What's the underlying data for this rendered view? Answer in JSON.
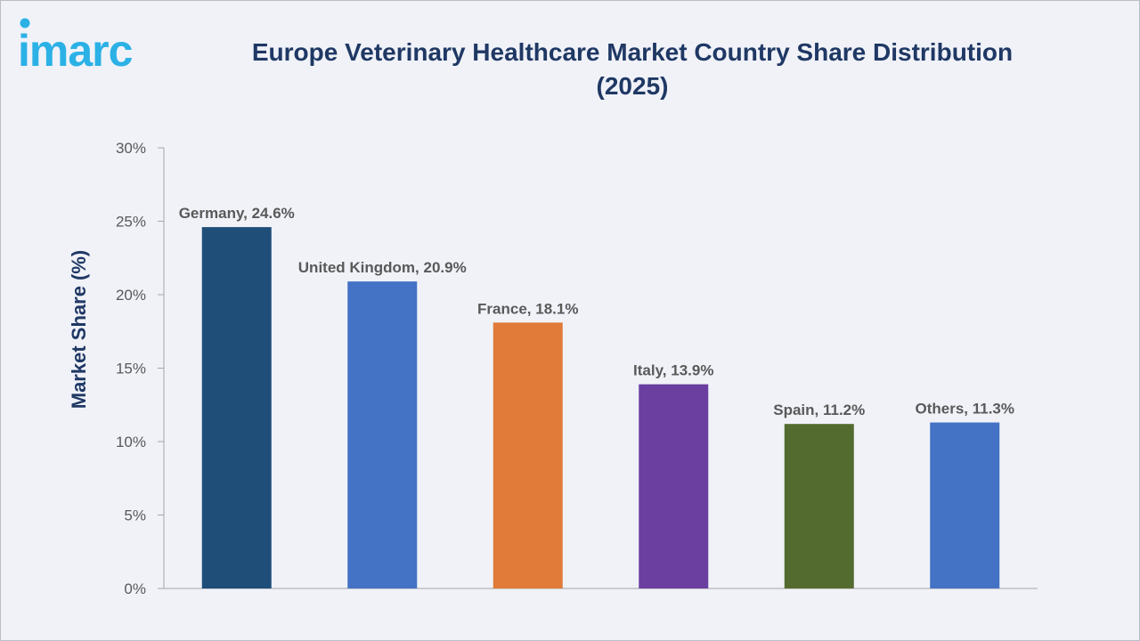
{
  "brand": {
    "logo_text": "imarc",
    "logo_color": "#2bb1e6"
  },
  "chart_data": {
    "type": "bar",
    "title": "Europe Veterinary Healthcare Market Country Share Distribution (2025)",
    "ylabel": "Market Share (%)",
    "xlabel": "",
    "ylim": [
      0,
      30
    ],
    "yticks": [
      0,
      5,
      10,
      15,
      20,
      25,
      30
    ],
    "ytick_labels": [
      "0%",
      "5%",
      "10%",
      "15%",
      "20%",
      "25%",
      "30%"
    ],
    "categories": [
      "Germany",
      "United Kingdom",
      "France",
      "Italy",
      "Spain",
      "Others"
    ],
    "values": [
      24.6,
      20.9,
      18.1,
      13.9,
      11.2,
      11.3
    ],
    "data_labels": [
      "Germany, 24.6%",
      "United Kingdom, 20.9%",
      "France, 18.1%",
      "Italy, 13.9%",
      "Spain, 11.2%",
      "Others, 11.3%"
    ],
    "colors": [
      "#1f4e79",
      "#4472c4",
      "#e07b39",
      "#6b3fa0",
      "#546b2f",
      "#4472c4"
    ],
    "grid": false,
    "legend": "none"
  },
  "styles": {
    "title_color": "#1f3864",
    "label_color": "#595959",
    "axis_color": "#a6a6a6",
    "background": "#f0f2f8"
  }
}
